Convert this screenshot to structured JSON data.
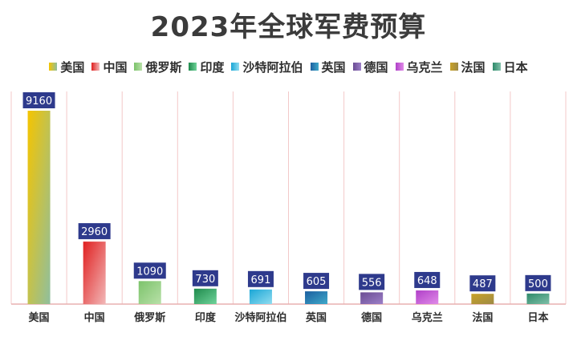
{
  "chart_data": {
    "type": "bar",
    "title": "2023年全球军费预算",
    "categories": [
      "美国",
      "中国",
      "俄罗斯",
      "印度",
      "沙特阿拉伯",
      "英国",
      "德国",
      "乌克兰",
      "法国",
      "日本"
    ],
    "values": [
      9160,
      2960,
      1090,
      730,
      691,
      605,
      556,
      648,
      487,
      500
    ],
    "ylim": [
      0,
      9160
    ],
    "grid": false,
    "legend_position": "top",
    "xlabel": "",
    "ylabel": "",
    "series_colors": [
      [
        "#f5c400",
        "#8fbf9e"
      ],
      [
        "#e02020",
        "#f2b8b8"
      ],
      [
        "#7cc36b",
        "#b8e0a8"
      ],
      [
        "#1f8a4c",
        "#6fd39a"
      ],
      [
        "#1aa6d6",
        "#8fdcf0"
      ],
      [
        "#1b5fa0",
        "#3fa9c9"
      ],
      [
        "#6a4c93",
        "#9c7fc7"
      ],
      [
        "#b040c8",
        "#e08ae8"
      ],
      [
        "#c9a227",
        "#9e8a45"
      ],
      [
        "#2e8a6a",
        "#7fbfa8"
      ]
    ],
    "label_bg": "#2e3a8c",
    "vline_color": "#f3c8c8",
    "axis_color": "#e8b0b0"
  }
}
